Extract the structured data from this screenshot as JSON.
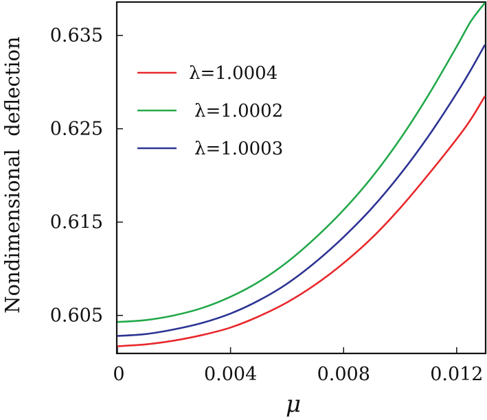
{
  "chart_data": {
    "type": "line",
    "title": "",
    "xlabel": "μ",
    "ylabel": "Nondimensional  deflection",
    "xlim": [
      0,
      0.013
    ],
    "ylim": [
      0.601,
      0.6385
    ],
    "x_ticks": [
      {
        "value": 0,
        "label": "0"
      },
      {
        "value": 0.004,
        "label": "0.004"
      },
      {
        "value": 0.008,
        "label": "0.008"
      },
      {
        "value": 0.012,
        "label": "0.012"
      }
    ],
    "y_ticks": [
      {
        "value": 0.605,
        "label": "0.605"
      },
      {
        "value": 0.615,
        "label": "0.615"
      },
      {
        "value": 0.625,
        "label": "0.625"
      },
      {
        "value": 0.635,
        "label": "0.635"
      }
    ],
    "grid": false,
    "legend_position": "top-left",
    "x": [
      0,
      0.001,
      0.002,
      0.003,
      0.004,
      0.005,
      0.006,
      0.007,
      0.008,
      0.009,
      0.01,
      0.011,
      0.012,
      0.0125,
      0.013
    ],
    "series": [
      {
        "name": "λ=1.0004",
        "color": "#e8282b",
        "values": [
          0.6017,
          0.6019,
          0.6023,
          0.6029,
          0.6037,
          0.6049,
          0.6064,
          0.6083,
          0.6106,
          0.6133,
          0.6165,
          0.6201,
          0.6239,
          0.626,
          0.6285
        ]
      },
      {
        "name": "λ=1.0002",
        "color": "#22a84a",
        "values": [
          0.6043,
          0.6045,
          0.605,
          0.6058,
          0.607,
          0.6086,
          0.6107,
          0.6133,
          0.6163,
          0.6198,
          0.6239,
          0.6286,
          0.6338,
          0.6365,
          0.6385
        ]
      },
      {
        "name": "λ=1.0003",
        "color": "#2c3393",
        "values": [
          0.6028,
          0.603,
          0.6035,
          0.6042,
          0.6052,
          0.6066,
          0.6084,
          0.6107,
          0.6134,
          0.6165,
          0.6201,
          0.6242,
          0.6288,
          0.6313,
          0.634
        ]
      }
    ]
  }
}
